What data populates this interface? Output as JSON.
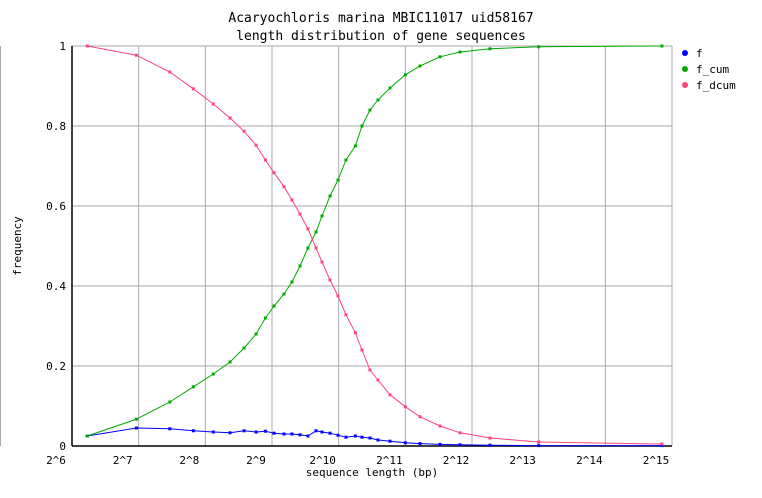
{
  "chart_data": {
    "type": "line",
    "title": "Acaryochloris marina MBIC11017 uid58167",
    "subtitle": "length distribution of gene sequences",
    "xlabel": "sequence length (bp)",
    "ylabel": "frequency",
    "x_scale": "log2",
    "xlim": [
      64,
      32768
    ],
    "ylim": [
      0,
      1
    ],
    "x_ticks": [
      "2^6",
      "2^7",
      "2^8",
      "2^9",
      "2^10",
      "2^11",
      "2^12",
      "2^13",
      "2^14",
      "2^15"
    ],
    "y_ticks": [
      "0",
      "0.2",
      "0.4",
      "0.6",
      "0.8",
      "1"
    ],
    "grid": true,
    "legend_position": "right",
    "x": [
      75,
      125,
      177,
      226,
      278,
      331,
      383,
      434,
      478,
      523,
      580,
      630,
      685,
      744,
      809,
      861,
      936,
      1017,
      1105,
      1218,
      1305,
      1418,
      1541,
      1746,
      2048,
      2385,
      2937,
      3615,
      4938,
      8192,
      29510
    ],
    "series": [
      {
        "name": "f",
        "color": "#0000ff",
        "values": [
          0.025,
          0.045,
          0.043,
          0.038,
          0.035,
          0.033,
          0.038,
          0.035,
          0.037,
          0.032,
          0.03,
          0.03,
          0.028,
          0.025,
          0.038,
          0.035,
          0.032,
          0.027,
          0.022,
          0.025,
          0.022,
          0.02,
          0.015,
          0.012,
          0.008,
          0.006,
          0.004,
          0.003,
          0.002,
          0.001,
          0.001
        ]
      },
      {
        "name": "f_cum",
        "color": "#00aa00",
        "values": [
          0.025,
          0.067,
          0.11,
          0.148,
          0.18,
          0.21,
          0.245,
          0.28,
          0.32,
          0.35,
          0.38,
          0.41,
          0.45,
          0.495,
          0.535,
          0.575,
          0.625,
          0.665,
          0.715,
          0.75,
          0.8,
          0.84,
          0.865,
          0.895,
          0.928,
          0.95,
          0.973,
          0.985,
          0.993,
          0.998,
          1.0
        ]
      },
      {
        "name": "f_dcum",
        "color": "#ff4477",
        "values": [
          1.0,
          0.977,
          0.935,
          0.893,
          0.855,
          0.82,
          0.787,
          0.752,
          0.715,
          0.683,
          0.648,
          0.615,
          0.58,
          0.543,
          0.495,
          0.46,
          0.415,
          0.375,
          0.328,
          0.283,
          0.24,
          0.19,
          0.165,
          0.128,
          0.098,
          0.073,
          0.05,
          0.033,
          0.02,
          0.01,
          0.005
        ]
      }
    ]
  }
}
